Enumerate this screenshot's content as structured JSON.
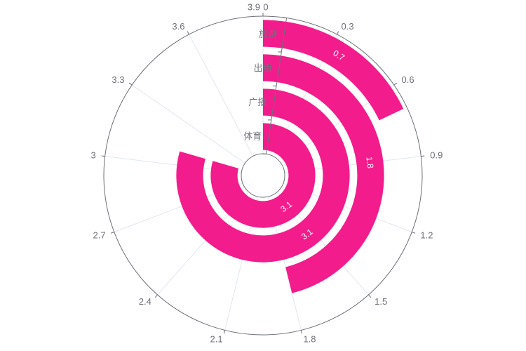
{
  "chart_data": {
    "type": "polar-bar",
    "title": "",
    "angle_axis": {
      "min": 0,
      "max": 3.9,
      "tick_labels": [
        "0",
        "0.3",
        "0.6",
        "0.9",
        "1.2",
        "1.5",
        "1.8",
        "2.1",
        "2.4",
        "2.7",
        "3",
        "3.3",
        "3.6",
        "3.9"
      ]
    },
    "radius_axis": {
      "categories": [
        "体育",
        "广播",
        "出版",
        "旅游"
      ]
    },
    "series": [
      {
        "values": [
          3.1,
          3.1,
          1.8,
          0.7
        ],
        "data_labels": [
          "3.1",
          "3.1",
          "1.8",
          "0.7"
        ]
      }
    ],
    "colors": {
      "bar": "#f31c8c",
      "axis": "#6e7079",
      "split_line": "#e0e6f1"
    },
    "grid": true,
    "legend": "none"
  }
}
